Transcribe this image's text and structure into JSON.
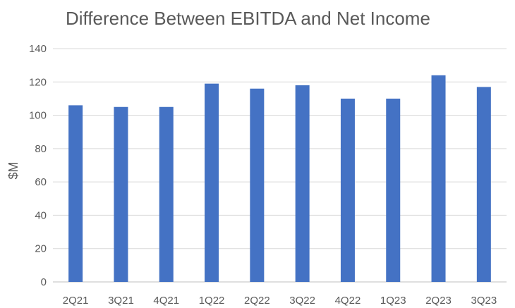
{
  "chart_data": {
    "type": "bar",
    "title": "Difference Between EBITDA and Net Income",
    "xlabel": "",
    "ylabel": "$M",
    "categories": [
      "2Q21",
      "3Q21",
      "4Q21",
      "1Q22",
      "2Q22",
      "3Q22",
      "4Q22",
      "1Q23",
      "2Q23",
      "3Q23"
    ],
    "values": [
      106,
      105,
      105,
      119,
      116,
      118,
      110,
      110,
      124,
      117
    ],
    "ylim": [
      0,
      140
    ],
    "yticks": [
      0,
      20,
      40,
      60,
      80,
      100,
      120,
      140
    ],
    "grid": true,
    "legend": "none",
    "bar_color": "#4472C4"
  }
}
